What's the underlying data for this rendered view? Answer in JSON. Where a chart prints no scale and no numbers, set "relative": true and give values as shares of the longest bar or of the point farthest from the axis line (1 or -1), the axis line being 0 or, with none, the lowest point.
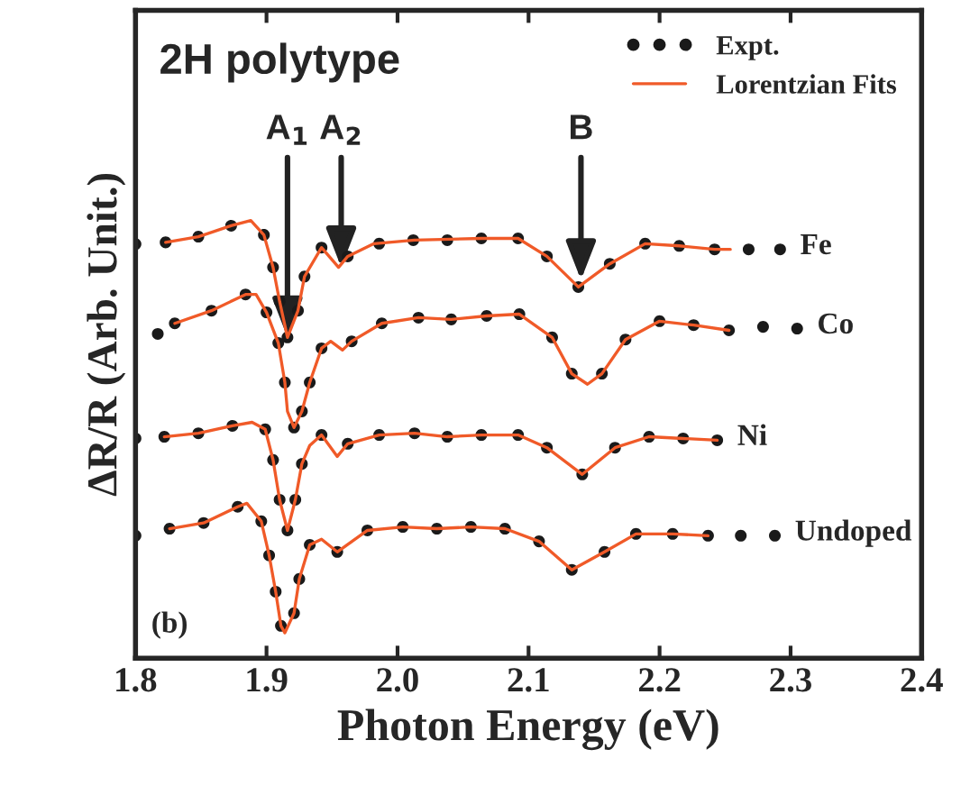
{
  "chart_data": {
    "type": "line",
    "title": "2H polytype",
    "xlabel": "Photon Energy (eV)",
    "ylabel": "ΔR/R (Arb. Unit.)",
    "relative": true,
    "xlim": [
      1.8,
      2.4
    ],
    "xticks": [
      1.8,
      1.9,
      {
        "value": 2.0,
        "label": "2.0"
      },
      2.1,
      2.2,
      2.3,
      2.4
    ],
    "grid": false,
    "legend": "top right",
    "series": [
      {
        "type": "scatter",
        "name": "Expt.",
        "color": "#1a1a1a",
        "marker": "circle",
        "x": [
          1.8,
          1.823,
          1.848,
          1.873,
          1.898,
          1.905,
          1.91,
          1.916,
          1.924,
          1.929,
          1.942,
          1.962,
          1.986,
          2.012,
          2.038,
          2.064,
          2.092,
          2.114,
          2.138,
          2.162,
          2.189,
          2.215,
          2.242,
          2.268,
          2.292
        ],
        "values": [
          0.946,
          0.95,
          0.963,
          0.988,
          0.967,
          0.893,
          0.815,
          0.733,
          0.794,
          0.872,
          0.938,
          0.918,
          0.947,
          0.955,
          0.955,
          0.959,
          0.959,
          0.918,
          0.848,
          0.901,
          0.947,
          0.942,
          0.934,
          0.934,
          0.934
        ]
      },
      {
        "name": "Lorentzian Fits",
        "color": "#f05a28",
        "marker": "none",
        "x": [
          1.823,
          1.848,
          1.873,
          1.888,
          1.898,
          1.905,
          1.91,
          1.916,
          1.924,
          1.929,
          1.942,
          1.955,
          1.962,
          1.982,
          2.013,
          2.064,
          2.092,
          2.114,
          2.138,
          2.162,
          2.189,
          2.215,
          2.242,
          2.254
        ],
        "values": [
          0.95,
          0.963,
          0.988,
          1.0,
          0.967,
          0.893,
          0.815,
          0.733,
          0.794,
          0.872,
          0.938,
          0.893,
          0.918,
          0.947,
          0.955,
          0.959,
          0.959,
          0.918,
          0.848,
          0.901,
          0.947,
          0.942,
          0.934,
          0.934
        ]
      },
      {
        "type": "scatter",
        "color": "#1a1a1a",
        "marker": "circle",
        "x": [
          1.817,
          1.83,
          1.858,
          1.884,
          1.9,
          1.909,
          1.914,
          1.921,
          1.927,
          1.933,
          1.942,
          1.965,
          1.988,
          2.016,
          2.041,
          2.068,
          2.093,
          2.118,
          2.133,
          2.156,
          2.174,
          2.2,
          2.226,
          2.253,
          2.279,
          2.305
        ],
        "values": [
          0.741,
          0.765,
          0.794,
          0.831,
          0.79,
          0.72,
          0.63,
          0.527,
          0.564,
          0.63,
          0.708,
          0.724,
          0.765,
          0.778,
          0.774,
          0.782,
          0.786,
          0.733,
          0.65,
          0.65,
          0.728,
          0.77,
          0.761,
          0.749,
          0.757,
          0.753
        ]
      },
      {
        "color": "#f05a28",
        "marker": "none",
        "x": [
          1.83,
          1.858,
          1.884,
          1.892,
          1.9,
          1.909,
          1.914,
          1.916,
          1.921,
          1.927,
          1.933,
          1.942,
          1.949,
          1.958,
          1.965,
          1.988,
          2.016,
          2.041,
          2.068,
          2.093,
          2.118,
          2.133,
          2.145,
          2.156,
          2.174,
          2.2,
          2.226,
          2.253
        ],
        "values": [
          0.765,
          0.794,
          0.831,
          0.831,
          0.79,
          0.72,
          0.63,
          0.564,
          0.527,
          0.564,
          0.63,
          0.708,
          0.724,
          0.704,
          0.724,
          0.765,
          0.778,
          0.774,
          0.782,
          0.786,
          0.733,
          0.65,
          0.626,
          0.65,
          0.728,
          0.77,
          0.761,
          0.749
        ]
      },
      {
        "type": "scatter",
        "color": "#1a1a1a",
        "marker": "circle",
        "x": [
          1.8,
          1.822,
          1.848,
          1.874,
          1.899,
          1.905,
          1.91,
          1.916,
          1.922,
          1.927,
          1.942,
          1.962,
          1.986,
          2.013,
          2.038,
          2.064,
          2.092,
          2.114,
          2.141,
          2.166,
          2.192,
          2.218,
          2.244
        ],
        "values": [
          0.502,
          0.506,
          0.514,
          0.531,
          0.523,
          0.453,
          0.362,
          0.292,
          0.362,
          0.444,
          0.51,
          0.49,
          0.51,
          0.514,
          0.506,
          0.51,
          0.51,
          0.481,
          0.42,
          0.481,
          0.506,
          0.502,
          0.498
        ]
      },
      {
        "color": "#f05a28",
        "marker": "none",
        "x": [
          1.822,
          1.848,
          1.874,
          1.889,
          1.899,
          1.905,
          1.91,
          1.916,
          1.922,
          1.927,
          1.933,
          1.942,
          1.954,
          1.962,
          1.986,
          2.013,
          2.038,
          2.064,
          2.092,
          2.114,
          2.141,
          2.166,
          2.192,
          2.218,
          2.244
        ],
        "values": [
          0.506,
          0.514,
          0.531,
          0.539,
          0.523,
          0.453,
          0.362,
          0.292,
          0.362,
          0.444,
          0.486,
          0.51,
          0.461,
          0.49,
          0.51,
          0.514,
          0.506,
          0.51,
          0.51,
          0.481,
          0.42,
          0.481,
          0.506,
          0.502,
          0.498
        ]
      },
      {
        "type": "scatter",
        "color": "#1a1a1a",
        "marker": "circle",
        "x": [
          1.8,
          1.826,
          1.852,
          1.878,
          1.896,
          1.902,
          1.907,
          1.911,
          1.921,
          1.925,
          1.933,
          1.954,
          1.977,
          2.004,
          2.03,
          2.056,
          2.082,
          2.108,
          2.133,
          2.158,
          2.182,
          2.21,
          2.237,
          2.262,
          2.288
        ],
        "values": [
          0.28,
          0.296,
          0.309,
          0.346,
          0.313,
          0.235,
          0.152,
          0.074,
          0.103,
          0.181,
          0.259,
          0.243,
          0.292,
          0.3,
          0.296,
          0.3,
          0.296,
          0.267,
          0.202,
          0.243,
          0.284,
          0.284,
          0.28,
          0.28,
          0.28
        ]
      },
      {
        "color": "#f05a28",
        "marker": "none",
        "x": [
          1.826,
          1.852,
          1.878,
          1.885,
          1.896,
          1.902,
          1.907,
          1.911,
          1.914,
          1.921,
          1.925,
          1.933,
          1.942,
          1.954,
          1.977,
          2.004,
          2.03,
          2.056,
          2.082,
          2.108,
          2.133,
          2.158,
          2.182,
          2.21,
          2.237
        ],
        "values": [
          0.296,
          0.309,
          0.346,
          0.354,
          0.313,
          0.235,
          0.152,
          0.074,
          0.058,
          0.103,
          0.181,
          0.259,
          0.272,
          0.243,
          0.292,
          0.3,
          0.296,
          0.3,
          0.296,
          0.267,
          0.202,
          0.243,
          0.284,
          0.284,
          0.28
        ]
      }
    ],
    "annotations": [
      {
        "text": "A$_{1}$",
        "x": 1.916,
        "y": 0.733
      },
      {
        "text": "A$_{2}$",
        "x": 1.957,
        "y": 0.893
      },
      {
        "text": "B",
        "x": 2.14,
        "y": 0.864
      },
      "Fe",
      "Co",
      "Ni",
      "Undoped",
      "(b)"
    ]
  }
}
